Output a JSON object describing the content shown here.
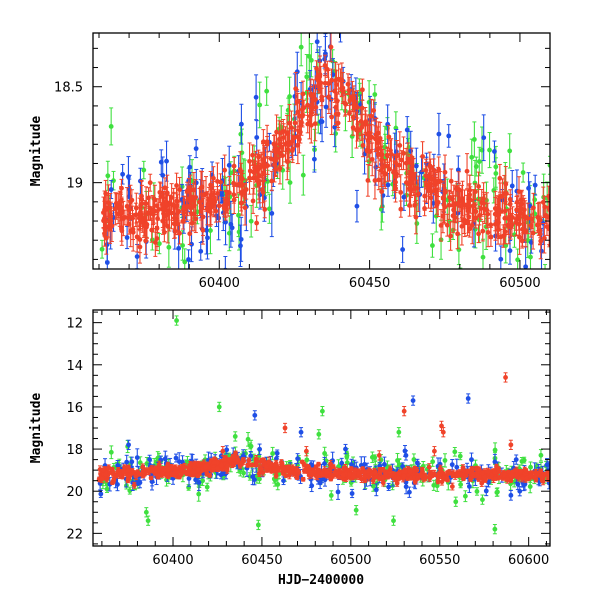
{
  "colors": {
    "green": "#3fe03f",
    "blue": "#1f4fe6",
    "red": "#f0432a"
  },
  "chart_data": [
    {
      "type": "scatter",
      "panel": "top",
      "xlabel": "",
      "ylabel": "Magnitude",
      "xlim": [
        60358,
        60510
      ],
      "ylim": [
        19.45,
        18.22
      ],
      "y_inverted": true,
      "xticks_major": [
        60400,
        60450,
        60500
      ],
      "xtick_labels": [
        "60400",
        "60450",
        "60500"
      ],
      "yticks_major": [
        18.5,
        19
      ],
      "ytick_labels": [
        "18.5",
        "19"
      ],
      "trend": [
        {
          "x": 60360,
          "y": 19.18
        },
        {
          "x": 60380,
          "y": 19.16
        },
        {
          "x": 60400,
          "y": 19.08
        },
        {
          "x": 60410,
          "y": 19.0
        },
        {
          "x": 60420,
          "y": 18.86
        },
        {
          "x": 60428,
          "y": 18.62
        },
        {
          "x": 60435,
          "y": 18.48
        },
        {
          "x": 60442,
          "y": 18.58
        },
        {
          "x": 60450,
          "y": 18.78
        },
        {
          "x": 60460,
          "y": 18.95
        },
        {
          "x": 60470,
          "y": 19.02
        },
        {
          "x": 60480,
          "y": 19.12
        },
        {
          "x": 60490,
          "y": 19.17
        },
        {
          "x": 60500,
          "y": 19.2
        },
        {
          "x": 60510,
          "y": 19.22
        }
      ],
      "series": [
        {
          "color": "green",
          "approx_points": 140,
          "scatter": 0.17,
          "error": 0.09
        },
        {
          "color": "blue",
          "approx_points": 140,
          "scatter": 0.16,
          "error": 0.09
        },
        {
          "color": "red",
          "approx_points": 600,
          "scatter": 0.07,
          "error": 0.07
        }
      ]
    },
    {
      "type": "scatter",
      "panel": "bottom",
      "xlabel": "HJD−2400000",
      "ylabel": "Magnitude",
      "xlim": [
        60355,
        60612
      ],
      "ylim": [
        22.6,
        11.4
      ],
      "y_inverted": true,
      "xticks_major": [
        60400,
        60450,
        60500,
        60550,
        60600
      ],
      "xtick_labels": [
        "60400",
        "60450",
        "60500",
        "60550",
        "60600"
      ],
      "yticks_major": [
        12,
        14,
        16,
        18,
        20,
        22
      ],
      "ytick_labels": [
        "12",
        "14",
        "16",
        "18",
        "20",
        "22"
      ],
      "trend": [
        {
          "x": 60360,
          "y": 19.2
        },
        {
          "x": 60400,
          "y": 19.05
        },
        {
          "x": 60420,
          "y": 18.85
        },
        {
          "x": 60435,
          "y": 18.5
        },
        {
          "x": 60450,
          "y": 18.8
        },
        {
          "x": 60470,
          "y": 19.05
        },
        {
          "x": 60500,
          "y": 19.2
        },
        {
          "x": 60550,
          "y": 19.2
        },
        {
          "x": 60610,
          "y": 19.25
        }
      ],
      "series": [
        {
          "color": "green",
          "approx_points": 200,
          "scatter": 0.5,
          "error": 0.25
        },
        {
          "color": "blue",
          "approx_points": 200,
          "scatter": 0.4,
          "error": 0.3
        },
        {
          "color": "red",
          "approx_points": 700,
          "scatter": 0.15,
          "error": 0.12
        }
      ],
      "outliers": [
        {
          "x": 60402,
          "y": 11.9,
          "color": "green"
        },
        {
          "x": 60375,
          "y": 17.8,
          "color": "blue"
        },
        {
          "x": 60385,
          "y": 21.0,
          "color": "green"
        },
        {
          "x": 60386,
          "y": 21.4,
          "color": "green"
        },
        {
          "x": 60426,
          "y": 16.0,
          "color": "green"
        },
        {
          "x": 60435,
          "y": 17.4,
          "color": "green"
        },
        {
          "x": 60428,
          "y": 18.1,
          "color": "red"
        },
        {
          "x": 60446,
          "y": 16.4,
          "color": "blue"
        },
        {
          "x": 60448,
          "y": 21.6,
          "color": "green"
        },
        {
          "x": 60454,
          "y": 18.6,
          "color": "red"
        },
        {
          "x": 60463,
          "y": 17.0,
          "color": "red"
        },
        {
          "x": 60472,
          "y": 17.2,
          "color": "blue"
        },
        {
          "x": 60475,
          "y": 18.1,
          "color": "red"
        },
        {
          "x": 60482,
          "y": 17.3,
          "color": "green"
        },
        {
          "x": 60484,
          "y": 16.2,
          "color": "green"
        },
        {
          "x": 60489,
          "y": 20.2,
          "color": "green"
        },
        {
          "x": 60497,
          "y": 18.0,
          "color": "blue"
        },
        {
          "x": 60503,
          "y": 20.9,
          "color": "green"
        },
        {
          "x": 60516,
          "y": 18.3,
          "color": "red"
        },
        {
          "x": 60524,
          "y": 21.4,
          "color": "green"
        },
        {
          "x": 60527,
          "y": 17.2,
          "color": "green"
        },
        {
          "x": 60530,
          "y": 16.2,
          "color": "red"
        },
        {
          "x": 60531,
          "y": 18.3,
          "color": "blue"
        },
        {
          "x": 60535,
          "y": 15.7,
          "color": "blue"
        },
        {
          "x": 60546,
          "y": 18.6,
          "color": "green"
        },
        {
          "x": 60547,
          "y": 18.1,
          "color": "red"
        },
        {
          "x": 60551,
          "y": 16.9,
          "color": "red"
        },
        {
          "x": 60552,
          "y": 17.2,
          "color": "red"
        },
        {
          "x": 60559,
          "y": 20.5,
          "color": "green"
        },
        {
          "x": 60566,
          "y": 15.6,
          "color": "blue"
        },
        {
          "x": 60574,
          "y": 20.4,
          "color": "green"
        },
        {
          "x": 60581,
          "y": 21.8,
          "color": "green"
        },
        {
          "x": 60587,
          "y": 14.6,
          "color": "red"
        },
        {
          "x": 60590,
          "y": 17.8,
          "color": "red"
        },
        {
          "x": 60593,
          "y": 18.5,
          "color": "blue"
        },
        {
          "x": 60595,
          "y": 20.0,
          "color": "blue"
        }
      ]
    }
  ]
}
